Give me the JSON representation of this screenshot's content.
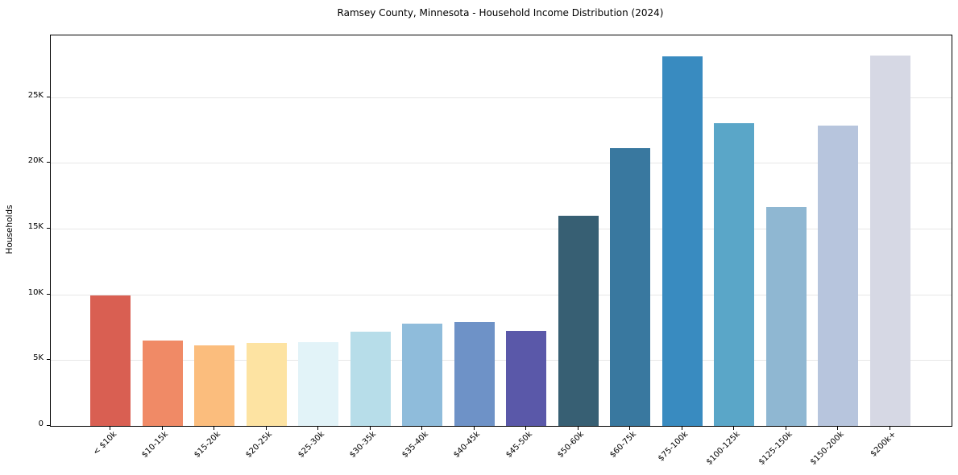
{
  "chart_data": {
    "type": "bar",
    "title": "Ramsey County, Minnesota - Household Income Distribution (2024)",
    "xlabel": "",
    "ylabel": "Households",
    "categories": [
      "< $10k",
      "$10-15k",
      "$15-20k",
      "$20-25k",
      "$25-30k",
      "$30-35k",
      "$35-40k",
      "$40-45k",
      "$45-50k",
      "$50-60k",
      "$60-75k",
      "$75-100k",
      "$100-125k",
      "$125-150k",
      "$150-200k",
      "$200k+"
    ],
    "values": [
      9950,
      6500,
      6100,
      6300,
      6350,
      7150,
      7750,
      7900,
      7200,
      16000,
      21100,
      28100,
      23000,
      16650,
      22850,
      28200
    ],
    "bar_colors": [
      "#d95f52",
      "#f08a66",
      "#fbbd7d",
      "#fde3a2",
      "#e2f3f8",
      "#b7dde9",
      "#8fbcdb",
      "#6e92c7",
      "#5a58a9",
      "#375f73",
      "#39789f",
      "#398bc0",
      "#5aa6c8",
      "#8fb7d2",
      "#b7c5dd",
      "#d6d8e4"
    ],
    "ytick_values": [
      0,
      5000,
      10000,
      15000,
      20000,
      25000
    ],
    "ytick_labels": [
      "0",
      "5K",
      "10K",
      "15K",
      "20K",
      "25K"
    ],
    "ylim": [
      0,
      29700
    ],
    "grid": "horizontal-only",
    "gridline_color": "#e7e7e7",
    "legend": "none",
    "plot_border_color": "#000000",
    "background_color": "#ffffff"
  }
}
